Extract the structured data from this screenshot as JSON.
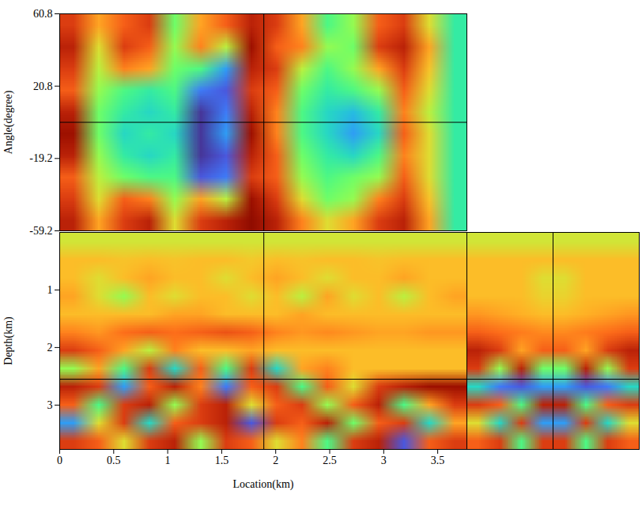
{
  "chart_data": [
    {
      "type": "heatmap",
      "color": "turbo",
      "zlim": [
        0,
        1
      ],
      "ylabel": "Angle(degree)",
      "tick_labels": "y",
      "xlim": [
        0,
        3.77
      ],
      "ylim": [
        -59.2,
        60.8
      ],
      "yticks": [
        60.8,
        20.8,
        -19.2,
        -59.2
      ],
      "crosshair": {
        "x": 1.89,
        "y": 0.8
      },
      "cells": [
        [
          0.85,
          0.7,
          0.8,
          0.85,
          0.45,
          0.7,
          0.8,
          0.9,
          0.85,
          0.7,
          0.4,
          0.5,
          0.8,
          0.85,
          0.6,
          0.35
        ],
        [
          0.9,
          0.6,
          0.85,
          0.8,
          0.5,
          0.75,
          0.55,
          0.95,
          0.8,
          0.75,
          0.5,
          0.45,
          0.85,
          0.9,
          0.7,
          0.35
        ],
        [
          0.85,
          0.55,
          0.75,
          0.7,
          0.45,
          0.4,
          0.2,
          0.9,
          0.85,
          0.55,
          0.4,
          0.5,
          0.7,
          0.85,
          0.65,
          0.35
        ],
        [
          0.8,
          0.5,
          0.4,
          0.35,
          0.4,
          0.15,
          0.1,
          0.85,
          0.8,
          0.45,
          0.35,
          0.4,
          0.5,
          0.8,
          0.6,
          0.35
        ],
        [
          0.9,
          0.45,
          0.35,
          0.3,
          0.35,
          0.05,
          0.15,
          0.9,
          0.75,
          0.4,
          0.3,
          0.25,
          0.35,
          0.75,
          0.55,
          0.35
        ],
        [
          0.95,
          0.45,
          0.3,
          0.35,
          0.3,
          0.05,
          0.2,
          0.95,
          0.75,
          0.4,
          0.3,
          0.2,
          0.3,
          0.8,
          0.6,
          0.35
        ],
        [
          0.9,
          0.5,
          0.35,
          0.3,
          0.35,
          0.05,
          0.1,
          0.9,
          0.8,
          0.45,
          0.35,
          0.3,
          0.4,
          0.75,
          0.6,
          0.35
        ],
        [
          0.8,
          0.55,
          0.45,
          0.4,
          0.4,
          0.1,
          0.15,
          0.85,
          0.8,
          0.5,
          0.4,
          0.45,
          0.5,
          0.8,
          0.6,
          0.35
        ],
        [
          0.85,
          0.6,
          0.8,
          0.75,
          0.5,
          0.7,
          0.55,
          0.95,
          0.85,
          0.6,
          0.45,
          0.5,
          0.75,
          0.85,
          0.65,
          0.35
        ],
        [
          0.9,
          0.7,
          0.85,
          0.9,
          0.6,
          0.85,
          0.9,
          1.0,
          0.9,
          0.75,
          0.6,
          0.7,
          0.85,
          0.9,
          0.7,
          0.35
        ]
      ]
    },
    {
      "type": "heatmap",
      "color": "turbo",
      "zlim": [
        0,
        1
      ],
      "xlabel": "Location(km)",
      "ylabel": "Depth(km)",
      "xlim": [
        0,
        3.77
      ],
      "ylim": [
        3.77,
        0
      ],
      "xticks": [
        0,
        0.5,
        1,
        1.5,
        2,
        2.5,
        3,
        3.5
      ],
      "yticks": [
        1,
        2,
        3
      ],
      "crosshair": {
        "x": 1.89,
        "y": 2.55
      },
      "cells": [
        [
          0.58,
          0.58,
          0.58,
          0.58,
          0.58,
          0.58,
          0.58,
          0.58,
          0.58,
          0.58,
          0.58,
          0.58,
          0.58,
          0.58,
          0.58,
          0.58
        ],
        [
          0.66,
          0.66,
          0.65,
          0.66,
          0.65,
          0.66,
          0.66,
          0.64,
          0.66,
          0.65,
          0.66,
          0.66,
          0.65,
          0.66,
          0.66,
          0.66
        ],
        [
          0.66,
          0.6,
          0.66,
          0.7,
          0.66,
          0.66,
          0.6,
          0.66,
          0.7,
          0.66,
          0.6,
          0.66,
          0.66,
          0.7,
          0.66,
          0.66
        ],
        [
          0.7,
          0.6,
          0.5,
          0.66,
          0.6,
          0.66,
          0.66,
          0.6,
          0.66,
          0.55,
          0.7,
          0.6,
          0.66,
          0.55,
          0.66,
          0.7
        ],
        [
          0.66,
          0.66,
          0.66,
          0.66,
          0.7,
          0.7,
          0.66,
          0.66,
          0.66,
          0.7,
          0.66,
          0.66,
          0.66,
          0.66,
          0.66,
          0.66
        ],
        [
          0.75,
          0.72,
          0.78,
          0.8,
          0.78,
          0.8,
          0.82,
          0.8,
          0.75,
          0.72,
          0.74,
          0.72,
          0.7,
          0.7,
          0.72,
          0.72
        ],
        [
          0.85,
          0.8,
          0.7,
          0.55,
          0.75,
          0.66,
          0.66,
          0.7,
          0.66,
          0.66,
          0.66,
          0.66,
          0.66,
          0.66,
          0.66,
          0.66
        ],
        [
          0.5,
          0.7,
          0.4,
          0.85,
          0.3,
          0.8,
          0.4,
          0.85,
          0.3,
          0.7,
          0.75,
          0.66,
          0.66,
          0.66,
          0.66,
          0.66
        ],
        [
          0.9,
          0.85,
          0.2,
          0.8,
          0.9,
          0.75,
          0.15,
          0.8,
          0.85,
          0.4,
          0.8,
          0.6,
          0.85,
          0.9,
          0.95,
          0.95
        ],
        [
          0.8,
          0.4,
          0.85,
          0.9,
          0.5,
          0.85,
          0.9,
          0.6,
          0.8,
          0.85,
          0.5,
          0.8,
          0.9,
          0.4,
          0.7,
          0.85
        ],
        [
          0.2,
          0.6,
          0.85,
          0.3,
          0.8,
          0.85,
          0.9,
          0.1,
          0.85,
          0.8,
          0.9,
          0.45,
          0.8,
          0.85,
          0.3,
          0.7
        ],
        [
          0.85,
          0.8,
          0.6,
          0.85,
          0.9,
          0.5,
          0.85,
          0.8,
          0.6,
          0.75,
          0.4,
          0.85,
          0.9,
          0.1,
          0.8,
          0.85
        ]
      ]
    },
    {
      "type": "heatmap",
      "color": "turbo",
      "zlim": [
        0,
        1
      ],
      "tick_labels": false,
      "xlim": [
        -59.2,
        60.8
      ],
      "ylim": [
        3.77,
        0
      ],
      "crosshair": {
        "x": 0.8,
        "y": 2.55
      },
      "cells": [
        [
          0.58,
          0.58,
          0.58,
          0.58,
          0.58,
          0.58,
          0.58,
          0.58
        ],
        [
          0.66,
          0.66,
          0.66,
          0.66,
          0.66,
          0.66,
          0.66,
          0.66
        ],
        [
          0.66,
          0.66,
          0.66,
          0.6,
          0.6,
          0.66,
          0.66,
          0.66
        ],
        [
          0.66,
          0.66,
          0.66,
          0.62,
          0.62,
          0.66,
          0.66,
          0.66
        ],
        [
          0.72,
          0.7,
          0.68,
          0.66,
          0.66,
          0.68,
          0.7,
          0.72
        ],
        [
          0.8,
          0.78,
          0.76,
          0.74,
          0.74,
          0.76,
          0.78,
          0.8
        ],
        [
          0.9,
          0.85,
          0.7,
          0.8,
          0.8,
          0.7,
          0.85,
          0.9
        ],
        [
          0.85,
          0.5,
          0.9,
          0.45,
          0.45,
          0.9,
          0.5,
          0.85
        ],
        [
          0.3,
          0.15,
          0.1,
          0.2,
          0.2,
          0.1,
          0.15,
          0.3
        ],
        [
          0.85,
          0.8,
          0.4,
          0.9,
          0.9,
          0.4,
          0.8,
          0.85
        ],
        [
          0.6,
          0.3,
          0.85,
          0.2,
          0.2,
          0.85,
          0.3,
          0.6
        ],
        [
          0.8,
          0.85,
          0.4,
          0.85,
          0.85,
          0.4,
          0.85,
          0.8
        ]
      ]
    }
  ]
}
